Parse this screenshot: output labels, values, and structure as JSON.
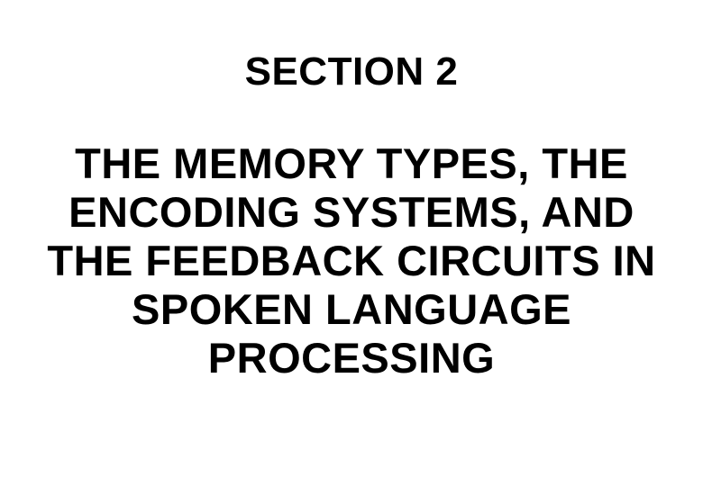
{
  "slide": {
    "heading": "SECTION 2",
    "title": "THE MEMORY TYPES, THE ENCODING SYSTEMS, AND THE FEEDBACK CIRCUITS IN SPOKEN LANGUAGE PROCESSING",
    "background_color": "#ffffff",
    "text_color": "#000000",
    "heading_fontsize": 44,
    "title_fontsize": 47,
    "font_weight": 700,
    "font_family": "Arial"
  }
}
